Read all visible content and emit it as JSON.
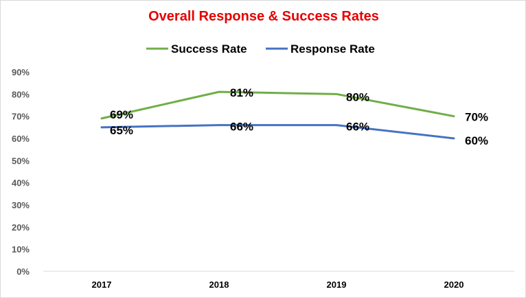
{
  "chart_data": {
    "type": "line",
    "title": "Overall Response & Success Rates",
    "categories": [
      "2017",
      "2018",
      "2019",
      "2020"
    ],
    "series": [
      {
        "name": "Success Rate",
        "color": "#70ad47",
        "values": [
          69,
          81,
          80,
          70
        ],
        "labels": [
          "69%",
          "81%",
          "80%",
          "70%"
        ]
      },
      {
        "name": "Response Rate",
        "color": "#4472c4",
        "values": [
          65,
          66,
          66,
          60
        ],
        "labels": [
          "65%",
          "66%",
          "66%",
          "60%"
        ]
      }
    ],
    "yticks": [
      0,
      10,
      20,
      30,
      40,
      50,
      60,
      70,
      80,
      90
    ],
    "ytick_labels": [
      "0%",
      "10%",
      "20%",
      "30%",
      "40%",
      "50%",
      "60%",
      "70%",
      "80%",
      "90%"
    ],
    "ylim": [
      0,
      90
    ],
    "xlabel": "",
    "ylabel": "",
    "grid": false,
    "legend_position": "top"
  }
}
